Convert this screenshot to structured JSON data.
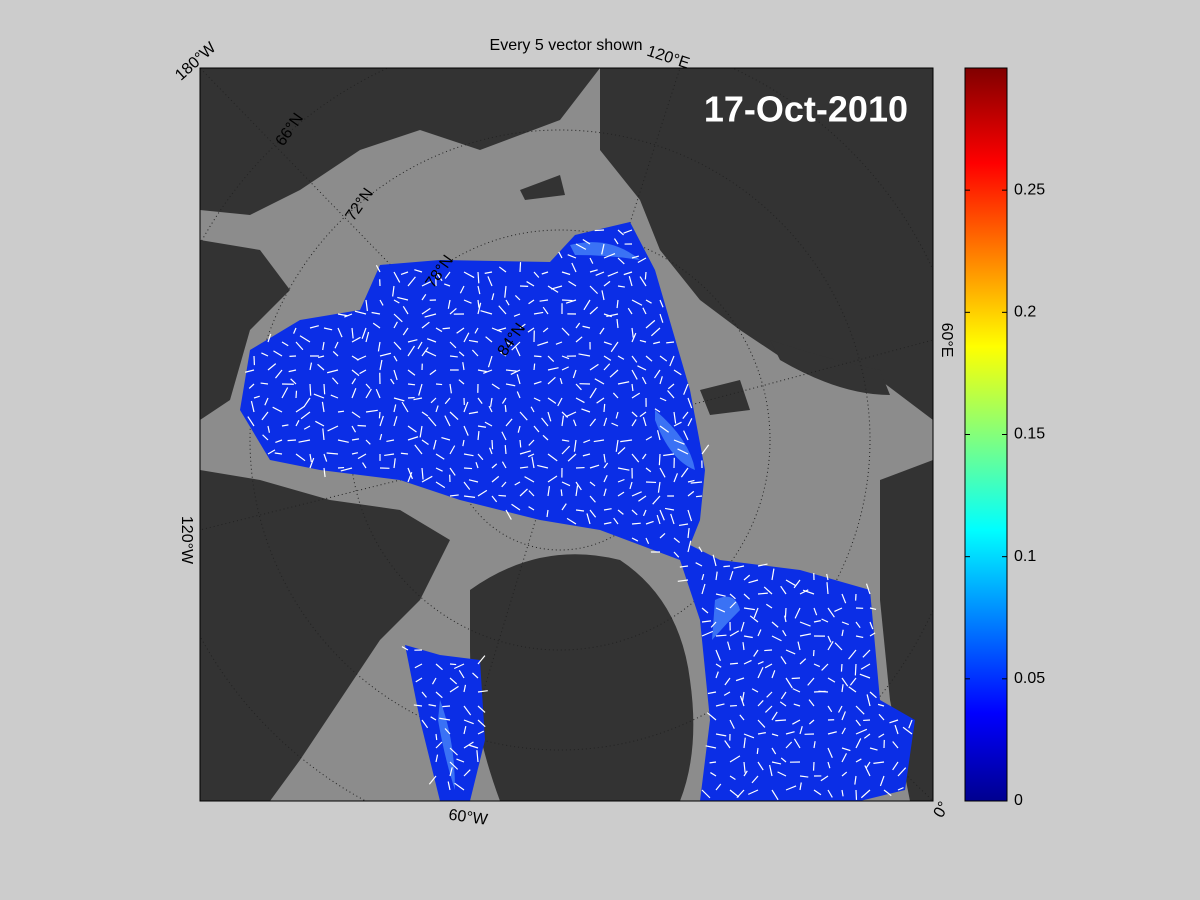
{
  "title": "Every 5 vector shown",
  "date": "17-Oct-2010",
  "longitude_labels": [
    "180°W",
    "120°E",
    "60°E",
    "0°",
    "60°W",
    "120°W"
  ],
  "latitude_labels": [
    "66°N",
    "72°N",
    "78°N",
    "84°N"
  ],
  "colorbar": {
    "lim": [
      0,
      0.3
    ],
    "ticks": [
      0,
      0.05,
      0.1,
      0.15,
      0.2,
      0.25
    ]
  }
}
